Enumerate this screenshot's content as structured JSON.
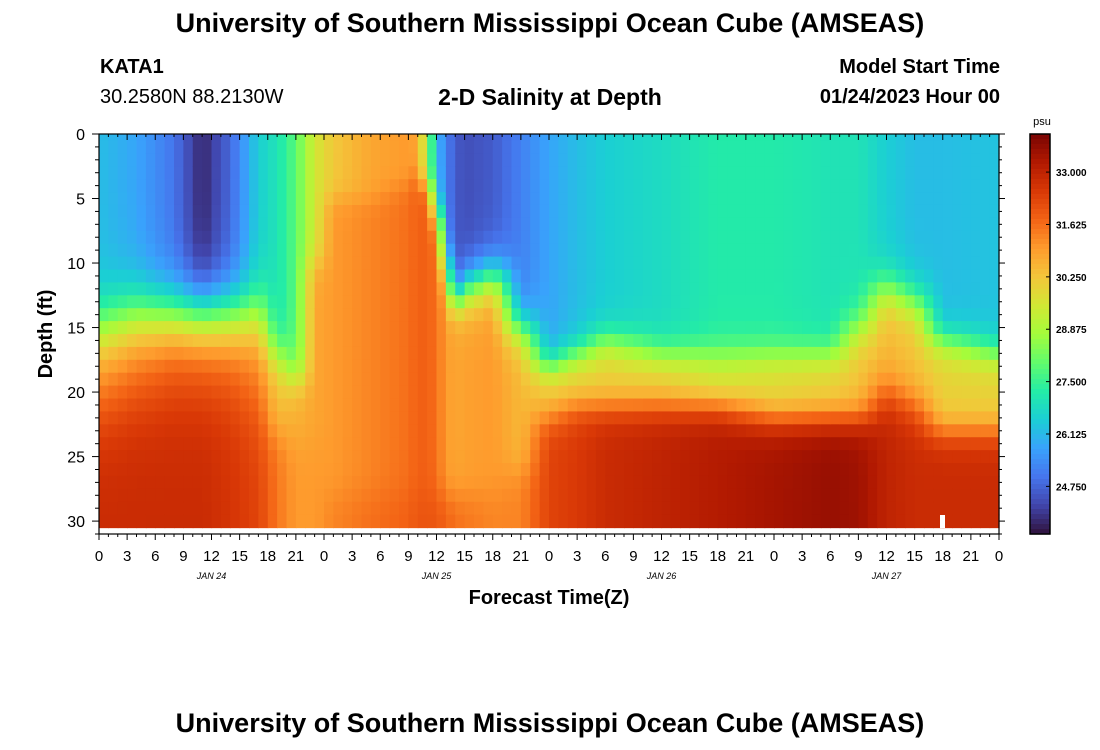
{
  "header": {
    "title": "University of Southern Mississippi Ocean Cube (AMSEAS)",
    "station_id": "KATA1",
    "station_coords": "30.2580N  88.2130W",
    "subtitle": "2-D Salinity at Depth",
    "model_label": "Model Start Time",
    "model_time": "01/24/2023 Hour 00"
  },
  "footer": {
    "title": "University of Southern Mississippi Ocean Cube (AMSEAS)"
  },
  "colors": {
    "scale": [
      "#30123b",
      "#4145ab",
      "#4675ed",
      "#39a2fc",
      "#1bcfd4",
      "#24eca6",
      "#61fc6c",
      "#a4fc3b",
      "#d1e834",
      "#f3c63a",
      "#fe9b2d",
      "#f36315",
      "#d93806",
      "#b11901",
      "#7a0403"
    ]
  },
  "chart_data": {
    "type": "heatmap",
    "xlabel": "Forecast Time(Z)",
    "ylabel": "Depth (ft)",
    "xlim": [
      0,
      96
    ],
    "ylim": [
      0,
      31
    ],
    "x_tick_labels": [
      "0",
      "3",
      "6",
      "9",
      "12",
      "15",
      "18",
      "21",
      "0",
      "3",
      "6",
      "9",
      "12",
      "15",
      "18",
      "21",
      "0",
      "3",
      "6",
      "9",
      "12",
      "15",
      "18",
      "21",
      "0",
      "3",
      "6",
      "9",
      "12",
      "15",
      "18",
      "21",
      "0"
    ],
    "y_ticks": [
      0,
      5,
      10,
      15,
      20,
      25,
      30
    ],
    "date_labels": [
      {
        "label": "JAN 24",
        "hour": 12
      },
      {
        "label": "JAN 25",
        "hour": 36
      },
      {
        "label": "JAN 26",
        "hour": 60
      },
      {
        "label": "JAN 27",
        "hour": 84
      }
    ],
    "colorbar": {
      "units": "psu",
      "min": 23.5,
      "max": 34.0,
      "ticks": [
        "33.000",
        "31.625",
        "30.250",
        "28.875",
        "27.500",
        "26.125",
        "24.750"
      ]
    },
    "depth_levels_ft": [
      0,
      1,
      2,
      3,
      4,
      5,
      6,
      7,
      8,
      9,
      10,
      11,
      12,
      13,
      14,
      15,
      16,
      17,
      18,
      19,
      20,
      21,
      22,
      23,
      24,
      25,
      26,
      27,
      28,
      29,
      30
    ],
    "salinity_columns": [
      {
        "hour": 0,
        "top": 26.2,
        "h1": 15,
        "p1": 6,
        "v1": 30.8,
        "h2": 21,
        "p2": 8,
        "v2": 32.8
      },
      {
        "hour": 4,
        "top": 25.8,
        "h1": 14,
        "p1": 6,
        "v1": 31.2,
        "h2": 20,
        "p2": 8,
        "v2": 32.8
      },
      {
        "hour": 8,
        "top": 25.0,
        "h1": 14,
        "p1": 6,
        "v1": 31.8,
        "h2": 20,
        "p2": 8,
        "v2": 32.8
      },
      {
        "hour": 11,
        "top": 23.8,
        "h1": 14,
        "p1": 6,
        "v1": 31.8,
        "h2": 20,
        "p2": 8,
        "v2": 32.8
      },
      {
        "hour": 14,
        "top": 24.8,
        "h1": 14,
        "p1": 6,
        "v1": 31.6,
        "h2": 20,
        "p2": 8,
        "v2": 32.6
      },
      {
        "hour": 17,
        "top": 26.5,
        "h1": 14,
        "p1": 6,
        "v1": 31.2,
        "h2": 21,
        "p2": 8,
        "v2": 32.3
      },
      {
        "hour": 19,
        "top": 27.0,
        "h1": 17,
        "p1": 4,
        "v1": 30.3,
        "h2": 23,
        "p2": 4,
        "v2": 31.5
      },
      {
        "hour": 21,
        "top": 27.9,
        "h1": 19,
        "p1": 3,
        "v1": 30.6,
        "h2": 24,
        "p2": 4,
        "v2": 31.0
      },
      {
        "hour": 23,
        "top": 29.5,
        "h1": 10,
        "p1": 3,
        "v1": 30.8,
        "h2": 24,
        "p2": 4,
        "v2": 31.0
      },
      {
        "hour": 25,
        "top": 30.2,
        "h1": 5,
        "p1": 2,
        "v1": 31.0,
        "h2": 28,
        "p2": 3,
        "v2": 31.3
      },
      {
        "hour": 29,
        "top": 30.8,
        "h1": 5,
        "p1": 2,
        "v1": 31.3,
        "h2": 28,
        "p2": 3,
        "v2": 31.6
      },
      {
        "hour": 33,
        "top": 31.0,
        "h1": 4,
        "p1": 2,
        "v1": 31.6,
        "h2": 28,
        "p2": 3,
        "v2": 31.8
      },
      {
        "hour": 34,
        "top": 30.8,
        "h1": 3,
        "p1": 2,
        "v1": 31.8,
        "h2": 28,
        "p2": 3,
        "v2": 32.0
      },
      {
        "hour": 35,
        "top": 28.8,
        "h1": 4,
        "p1": 2,
        "v1": 31.8,
        "h2": 28,
        "p2": 3,
        "v2": 32.0
      },
      {
        "hour": 36,
        "top": 26.2,
        "h1": 6,
        "p1": 3,
        "v1": 31.6,
        "h2": 28,
        "p2": 3,
        "v2": 32.0
      },
      {
        "hour": 37,
        "top": 25.2,
        "h1": 10,
        "p1": 4,
        "v1": 31.0,
        "h2": 28,
        "p2": 3,
        "v2": 31.8
      },
      {
        "hour": 38,
        "top": 24.6,
        "h1": 13,
        "p1": 3,
        "v1": 30.8,
        "h2": 28,
        "p2": 3,
        "v2": 31.6
      },
      {
        "hour": 39,
        "top": 24.4,
        "h1": 12,
        "p1": 4,
        "v1": 30.9,
        "h2": 28,
        "p2": 3,
        "v2": 31.5
      },
      {
        "hour": 42,
        "top": 24.6,
        "h1": 11,
        "p1": 4,
        "v1": 31.0,
        "h2": 28,
        "p2": 3,
        "v2": 31.3
      },
      {
        "hour": 45,
        "top": 25.2,
        "h1": 15,
        "p1": 4,
        "v1": 30.5,
        "h2": 26,
        "p2": 3,
        "v2": 31.3
      },
      {
        "hour": 48,
        "top": 25.8,
        "h1": 18,
        "p1": 3,
        "v1": 30.3,
        "h2": 22,
        "p2": 3,
        "v2": 32.3
      },
      {
        "hour": 51,
        "top": 26.2,
        "h1": 17,
        "p1": 3,
        "v1": 30.0,
        "h2": 21,
        "p2": 3,
        "v2": 32.5
      },
      {
        "hour": 54,
        "top": 26.5,
        "h1": 16,
        "p1": 3,
        "v1": 30.0,
        "h2": 21,
        "p2": 3,
        "v2": 32.8
      },
      {
        "hour": 60,
        "top": 26.8,
        "h1": 17,
        "p1": 3,
        "v1": 30.0,
        "h2": 21,
        "p2": 3,
        "v2": 33.0
      },
      {
        "hour": 66,
        "top": 27.2,
        "h1": 17,
        "p1": 3,
        "v1": 29.5,
        "h2": 21,
        "p2": 3,
        "v2": 33.2
      },
      {
        "hour": 72,
        "top": 27.2,
        "h1": 17,
        "p1": 3,
        "v1": 29.8,
        "h2": 22,
        "p2": 3,
        "v2": 33.4
      },
      {
        "hour": 78,
        "top": 27.0,
        "h1": 17,
        "p1": 3,
        "v1": 30.0,
        "h2": 22,
        "p2": 3,
        "v2": 33.6
      },
      {
        "hour": 81,
        "top": 27.0,
        "h1": 15,
        "p1": 4,
        "v1": 30.3,
        "h2": 22,
        "p2": 3,
        "v2": 33.5
      },
      {
        "hour": 84,
        "top": 26.5,
        "h1": 12,
        "p1": 4,
        "v1": 30.5,
        "h2": 20,
        "p2": 4,
        "v2": 33.0
      },
      {
        "hour": 87,
        "top": 26.2,
        "h1": 13,
        "p1": 4,
        "v1": 30.3,
        "h2": 21,
        "p2": 4,
        "v2": 32.8
      },
      {
        "hour": 90,
        "top": 26.2,
        "h1": 16,
        "p1": 3,
        "v1": 30.0,
        "h2": 23,
        "p2": 3,
        "v2": 32.8
      },
      {
        "hour": 96,
        "top": 26.3,
        "h1": 17,
        "p1": 3,
        "v1": 30.0,
        "h2": 23,
        "p2": 3,
        "v2": 32.8
      }
    ]
  }
}
